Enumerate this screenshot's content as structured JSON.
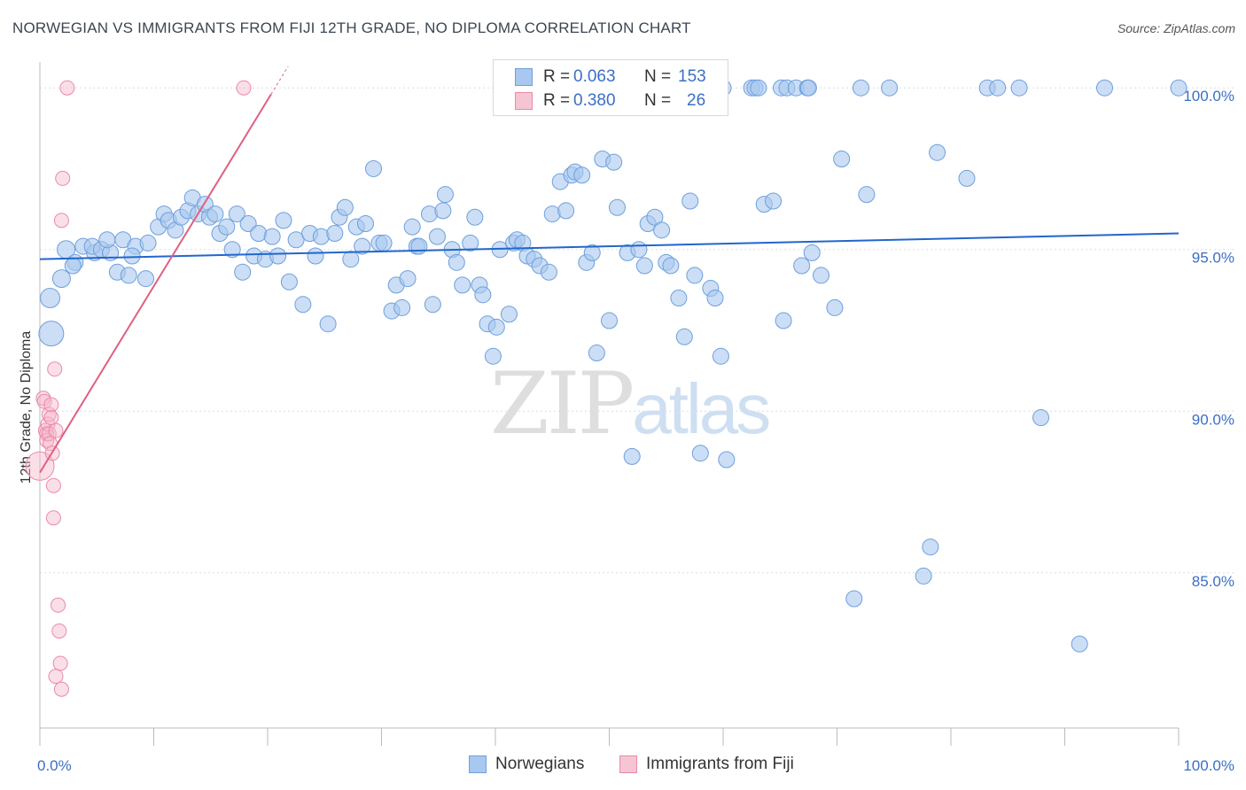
{
  "title": "NORWEGIAN VS IMMIGRANTS FROM FIJI 12TH GRADE, NO DIPLOMA CORRELATION CHART",
  "source": "Source: ZipAtlas.com",
  "watermark": {
    "zip": "ZIP",
    "atlas": "atlas"
  },
  "legend_top": {
    "r_label": "R =",
    "n_label": "N =",
    "rows": [
      {
        "r": "0.063",
        "n": "153"
      },
      {
        "r": "0.380",
        "n": "26"
      }
    ]
  },
  "legend_bottom": [
    "Norwegians",
    "Immigrants from Fiji"
  ],
  "colors": {
    "blue_fill": "#a9c8ef",
    "blue_stroke": "#6e9fdc",
    "blue_line": "#2266cc",
    "pink_fill": "#f6b8cb",
    "pink_stroke": "#e98aa8",
    "pink_line": "#e0607f",
    "grid": "#d8dde6",
    "tick_text": "#3b6fc4"
  },
  "chart_data": {
    "type": "scatter",
    "title": "NORWEGIAN VS IMMIGRANTS FROM FIJI 12TH GRADE, NO DIPLOMA CORRELATION CHART",
    "xlabel": "",
    "ylabel": "12th Grade, No Diploma",
    "xlim": [
      0,
      100
    ],
    "ylim": [
      80.2,
      100.8
    ],
    "x_tick_labels": [
      "0.0%",
      "100.0%"
    ],
    "y_ticks": [
      85,
      90,
      95,
      100
    ],
    "y_tick_labels": [
      "85.0%",
      "90.0%",
      "95.0%",
      "100.0%"
    ],
    "series": [
      {
        "name": "Norwegians",
        "r": 0.063,
        "n": 153,
        "trend": {
          "x": [
            0,
            100
          ],
          "y": [
            94.7,
            95.5
          ]
        },
        "points": [
          [
            1.0,
            92.4
          ],
          [
            0.9,
            93.5
          ],
          [
            1.9,
            94.1
          ],
          [
            2.3,
            95.0
          ],
          [
            3.1,
            94.6
          ],
          [
            2.9,
            94.5
          ],
          [
            3.8,
            95.1
          ],
          [
            4.8,
            94.9
          ],
          [
            4.6,
            95.1
          ],
          [
            5.4,
            95.0
          ],
          [
            6.2,
            94.9
          ],
          [
            5.9,
            95.3
          ],
          [
            7.3,
            95.3
          ],
          [
            6.8,
            94.3
          ],
          [
            8.4,
            95.1
          ],
          [
            8.1,
            94.8
          ],
          [
            7.8,
            94.2
          ],
          [
            9.5,
            95.2
          ],
          [
            9.3,
            94.1
          ],
          [
            10.4,
            95.7
          ],
          [
            10.9,
            96.1
          ],
          [
            11.3,
            95.9
          ],
          [
            11.9,
            95.6
          ],
          [
            12.4,
            96.0
          ],
          [
            13.0,
            96.2
          ],
          [
            13.4,
            96.6
          ],
          [
            13.9,
            96.1
          ],
          [
            14.5,
            96.4
          ],
          [
            14.9,
            96.0
          ],
          [
            15.4,
            96.1
          ],
          [
            15.8,
            95.5
          ],
          [
            16.4,
            95.7
          ],
          [
            16.9,
            95.0
          ],
          [
            17.3,
            96.1
          ],
          [
            17.8,
            94.3
          ],
          [
            18.3,
            95.8
          ],
          [
            18.8,
            94.8
          ],
          [
            19.2,
            95.5
          ],
          [
            19.8,
            94.7
          ],
          [
            20.4,
            95.4
          ],
          [
            20.9,
            94.8
          ],
          [
            21.4,
            95.9
          ],
          [
            21.9,
            94.0
          ],
          [
            22.5,
            95.3
          ],
          [
            23.1,
            93.3
          ],
          [
            23.7,
            95.5
          ],
          [
            24.2,
            94.8
          ],
          [
            24.7,
            95.4
          ],
          [
            25.3,
            92.7
          ],
          [
            25.9,
            95.5
          ],
          [
            26.3,
            96.0
          ],
          [
            26.8,
            96.3
          ],
          [
            27.3,
            94.7
          ],
          [
            27.8,
            95.7
          ],
          [
            28.3,
            95.1
          ],
          [
            28.6,
            95.8
          ],
          [
            29.3,
            97.5
          ],
          [
            29.8,
            95.2
          ],
          [
            30.2,
            95.2
          ],
          [
            30.9,
            93.1
          ],
          [
            31.3,
            93.9
          ],
          [
            31.8,
            93.2
          ],
          [
            32.3,
            94.1
          ],
          [
            32.7,
            95.7
          ],
          [
            33.1,
            95.1
          ],
          [
            33.3,
            95.1
          ],
          [
            34.2,
            96.1
          ],
          [
            34.5,
            93.3
          ],
          [
            34.9,
            95.4
          ],
          [
            35.4,
            96.2
          ],
          [
            35.6,
            96.7
          ],
          [
            36.2,
            95.0
          ],
          [
            36.6,
            94.6
          ],
          [
            37.1,
            93.9
          ],
          [
            37.8,
            95.2
          ],
          [
            38.2,
            96.0
          ],
          [
            38.6,
            93.9
          ],
          [
            38.9,
            93.6
          ],
          [
            39.3,
            92.7
          ],
          [
            39.8,
            91.7
          ],
          [
            40.1,
            92.6
          ],
          [
            40.4,
            95.0
          ],
          [
            41.2,
            93.0
          ],
          [
            41.6,
            95.2
          ],
          [
            41.9,
            95.3
          ],
          [
            42.4,
            95.2
          ],
          [
            42.8,
            94.8
          ],
          [
            43.4,
            94.7
          ],
          [
            43.9,
            94.5
          ],
          [
            44.7,
            94.3
          ],
          [
            45.0,
            96.1
          ],
          [
            45.7,
            97.1
          ],
          [
            46.2,
            96.2
          ],
          [
            46.7,
            97.3
          ],
          [
            47.0,
            97.4
          ],
          [
            47.6,
            97.3
          ],
          [
            48.0,
            94.6
          ],
          [
            48.5,
            94.9
          ],
          [
            48.9,
            91.8
          ],
          [
            49.4,
            97.8
          ],
          [
            50.0,
            92.8
          ],
          [
            50.4,
            97.7
          ],
          [
            50.7,
            96.3
          ],
          [
            51.6,
            94.9
          ],
          [
            52.0,
            88.6
          ],
          [
            52.6,
            95.0
          ],
          [
            53.1,
            94.5
          ],
          [
            53.4,
            95.8
          ],
          [
            54.0,
            96.0
          ],
          [
            54.6,
            95.6
          ],
          [
            55.0,
            94.6
          ],
          [
            55.4,
            94.5
          ],
          [
            56.1,
            93.5
          ],
          [
            56.6,
            92.3
          ],
          [
            57.1,
            96.5
          ],
          [
            57.5,
            94.2
          ],
          [
            58.0,
            88.7
          ],
          [
            58.9,
            93.8
          ],
          [
            59.3,
            93.5
          ],
          [
            59.8,
            91.7
          ],
          [
            60.3,
            88.5
          ],
          [
            60.0,
            100.0
          ],
          [
            62.5,
            100.0
          ],
          [
            62.8,
            100.0
          ],
          [
            63.1,
            100.0
          ],
          [
            63.6,
            96.4
          ],
          [
            64.4,
            96.5
          ],
          [
            65.1,
            100.0
          ],
          [
            65.6,
            100.0
          ],
          [
            65.3,
            92.8
          ],
          [
            66.4,
            100.0
          ],
          [
            66.9,
            94.5
          ],
          [
            67.4,
            100.0
          ],
          [
            67.8,
            94.9
          ],
          [
            67.5,
            100.0
          ],
          [
            68.6,
            94.2
          ],
          [
            69.8,
            93.2
          ],
          [
            70.4,
            97.8
          ],
          [
            71.5,
            84.2
          ],
          [
            72.1,
            100.0
          ],
          [
            72.6,
            96.7
          ],
          [
            74.6,
            100.0
          ],
          [
            77.6,
            84.9
          ],
          [
            78.2,
            85.8
          ],
          [
            78.8,
            98.0
          ],
          [
            81.4,
            97.2
          ],
          [
            83.2,
            100.0
          ],
          [
            84.1,
            100.0
          ],
          [
            86.0,
            100.0
          ],
          [
            87.9,
            89.8
          ],
          [
            91.3,
            82.8
          ],
          [
            93.5,
            100.0
          ],
          [
            100.0,
            100.0
          ]
        ]
      },
      {
        "name": "Immigrants from Fiji",
        "r": 0.38,
        "n": 26,
        "trend": {
          "x": [
            0,
            20.3
          ],
          "y": [
            88.1,
            99.8
          ]
        },
        "points": [
          [
            0.0,
            88.3
          ],
          [
            0.3,
            90.4
          ],
          [
            0.4,
            90.3
          ],
          [
            0.5,
            89.4
          ],
          [
            0.6,
            89.3
          ],
          [
            0.6,
            89.1
          ],
          [
            0.7,
            89.6
          ],
          [
            0.8,
            89.9
          ],
          [
            0.8,
            89.3
          ],
          [
            0.9,
            89.0
          ],
          [
            1.0,
            90.2
          ],
          [
            1.0,
            89.8
          ],
          [
            1.1,
            88.7
          ],
          [
            1.2,
            87.7
          ],
          [
            1.2,
            86.7
          ],
          [
            1.3,
            91.3
          ],
          [
            1.4,
            89.4
          ],
          [
            1.4,
            81.8
          ],
          [
            1.6,
            84.0
          ],
          [
            1.7,
            83.2
          ],
          [
            1.8,
            82.2
          ],
          [
            1.9,
            81.4
          ],
          [
            1.9,
            95.9
          ],
          [
            2.0,
            97.2
          ],
          [
            2.4,
            100.0
          ],
          [
            17.9,
            100.0
          ]
        ]
      }
    ]
  }
}
